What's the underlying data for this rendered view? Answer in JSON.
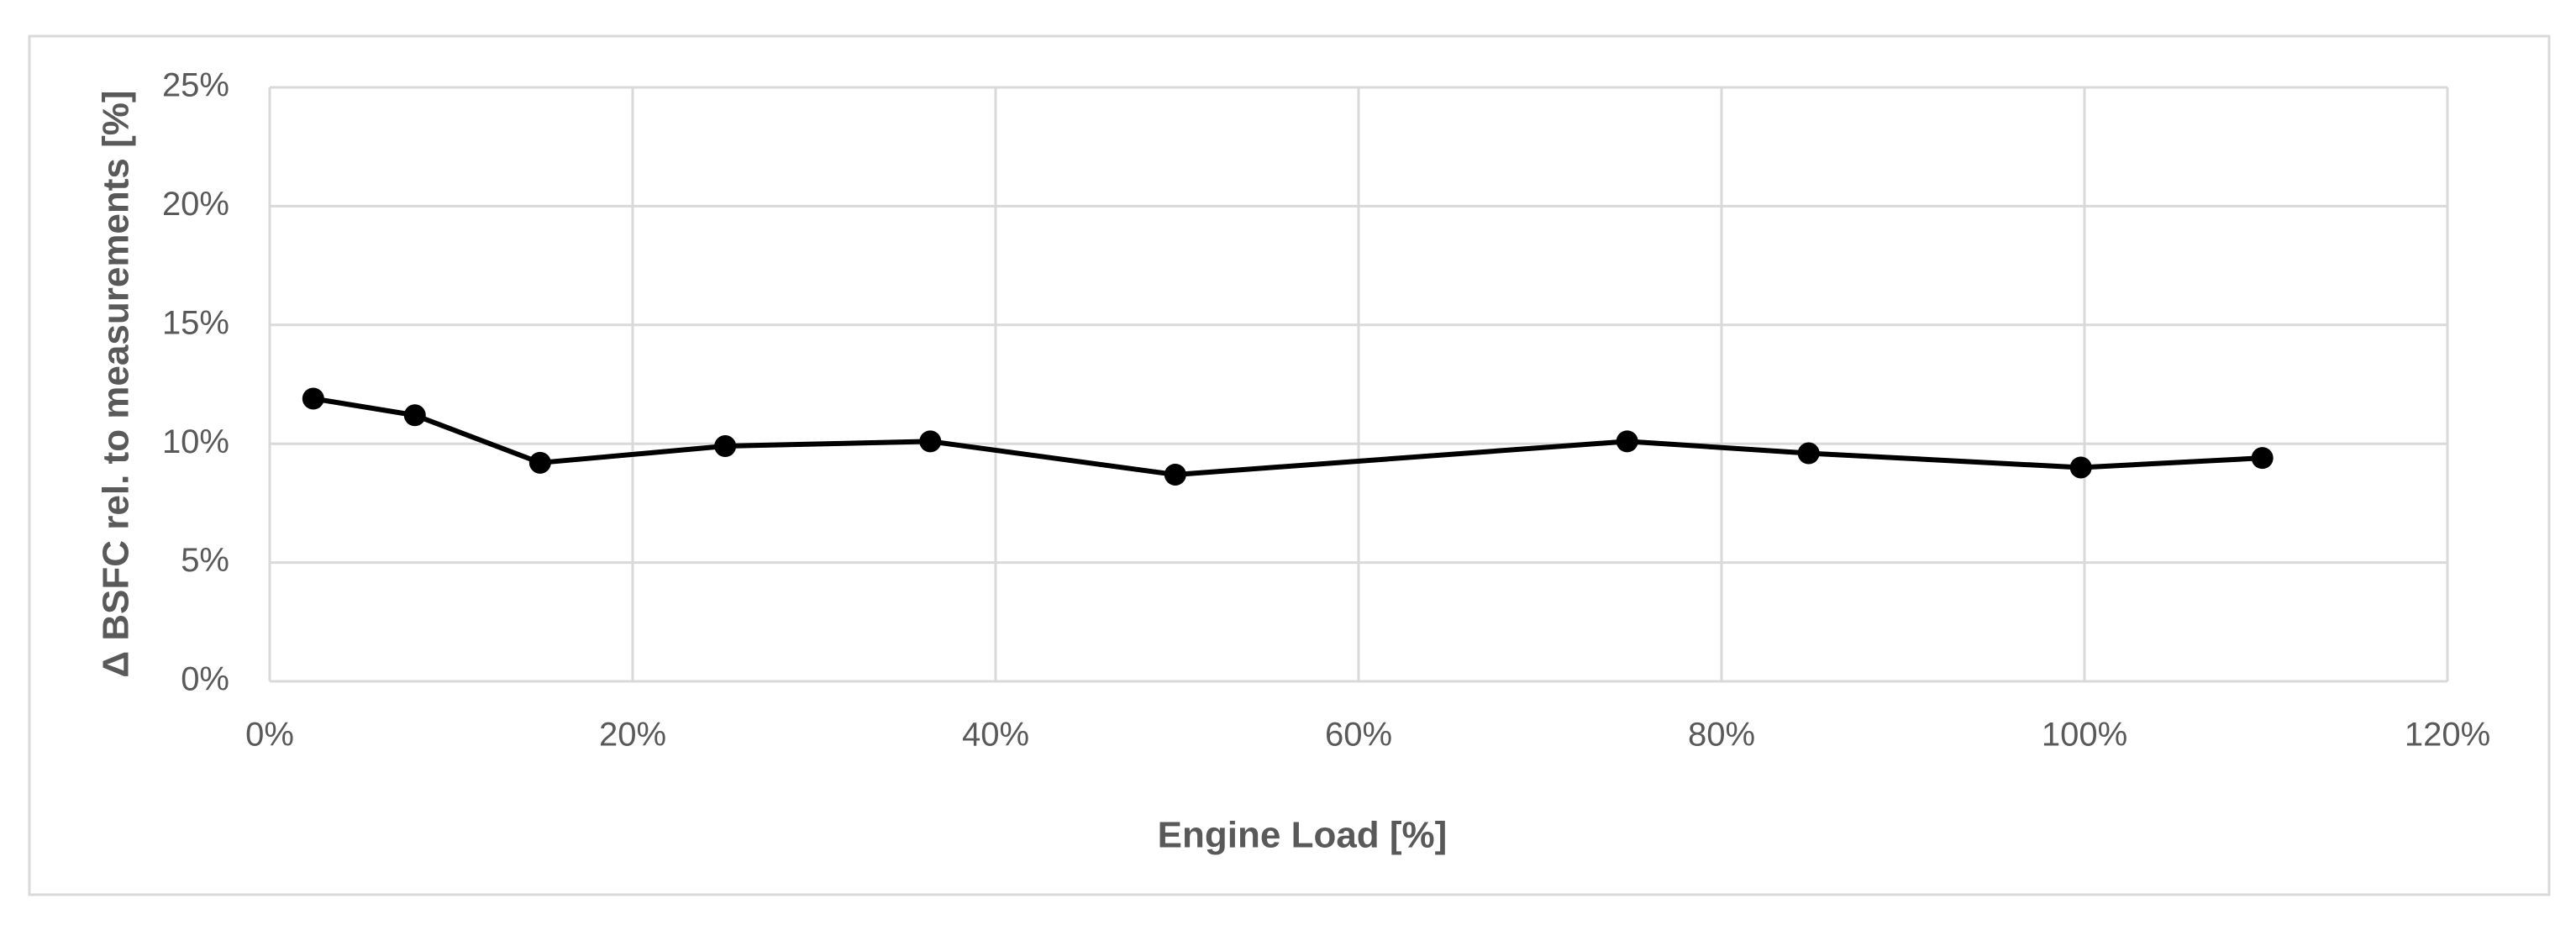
{
  "chart_data": {
    "type": "line",
    "x_label": "Engine Load [%]",
    "y_label": "Δ BSFC rel. to measurements [%]",
    "x": [
      2.4,
      8.0,
      14.9,
      25.1,
      36.4,
      49.9,
      74.8,
      84.8,
      99.8,
      109.8
    ],
    "values": [
      11.9,
      11.2,
      9.2,
      9.9,
      10.1,
      8.7,
      10.1,
      9.6,
      9.0,
      9.4
    ],
    "color": "#000000",
    "xlim": [
      0,
      120
    ],
    "xticks": [
      {
        "value": 0,
        "label": "0%"
      },
      {
        "value": 20,
        "label": "20%"
      },
      {
        "value": 40,
        "label": "40%"
      },
      {
        "value": 60,
        "label": "60%"
      },
      {
        "value": 80,
        "label": "80%"
      },
      {
        "value": 100,
        "label": "100%"
      },
      {
        "value": 120,
        "label": "120%"
      }
    ],
    "ylim": [
      0,
      25
    ],
    "yticks": [
      {
        "value": 0,
        "label": "0%"
      },
      {
        "value": 5,
        "label": "5%"
      },
      {
        "value": 10,
        "label": "10%"
      },
      {
        "value": 15,
        "label": "15%"
      },
      {
        "value": 20,
        "label": "20%"
      },
      {
        "value": 25,
        "label": "25%"
      }
    ],
    "grid": true
  }
}
